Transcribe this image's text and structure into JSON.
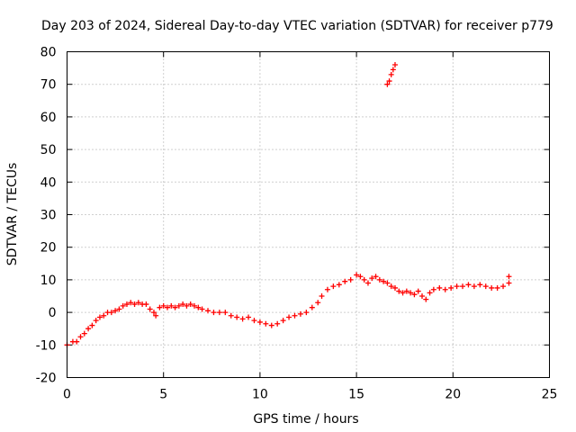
{
  "chart_data": {
    "type": "scatter",
    "title": "Day 203 of 2024, Sidereal Day-to-day VTEC variation (SDTVAR) for receiver p779",
    "xlabel": "GPS time / hours",
    "ylabel": "SDTVAR / TECUs",
    "xlim": [
      0,
      25
    ],
    "ylim": [
      -20,
      80
    ],
    "xticks": [
      0,
      5,
      10,
      15,
      20,
      25
    ],
    "yticks": [
      -20,
      -10,
      0,
      10,
      20,
      30,
      40,
      50,
      60,
      70,
      80
    ],
    "grid": true,
    "marker": "plus",
    "color": "#ff0000",
    "series": [
      {
        "name": "SDTVAR",
        "points": [
          [
            0.0,
            -10.0
          ],
          [
            0.3,
            -9.0
          ],
          [
            0.5,
            -9.0
          ],
          [
            0.7,
            -7.5
          ],
          [
            0.9,
            -6.5
          ],
          [
            1.1,
            -5.0
          ],
          [
            1.3,
            -4.0
          ],
          [
            1.5,
            -2.5
          ],
          [
            1.7,
            -1.5
          ],
          [
            1.9,
            -1.0
          ],
          [
            2.1,
            0.0
          ],
          [
            2.3,
            0.0
          ],
          [
            2.5,
            0.5
          ],
          [
            2.7,
            1.0
          ],
          [
            2.9,
            2.0
          ],
          [
            3.1,
            2.5
          ],
          [
            3.3,
            3.0
          ],
          [
            3.5,
            2.5
          ],
          [
            3.7,
            3.0
          ],
          [
            3.9,
            2.5
          ],
          [
            4.1,
            2.5
          ],
          [
            4.3,
            1.0
          ],
          [
            4.5,
            0.0
          ],
          [
            4.6,
            -1.0
          ],
          [
            4.8,
            1.5
          ],
          [
            5.0,
            2.0
          ],
          [
            5.2,
            1.5
          ],
          [
            5.4,
            2.0
          ],
          [
            5.6,
            1.5
          ],
          [
            5.8,
            2.0
          ],
          [
            6.0,
            2.5
          ],
          [
            6.2,
            2.0
          ],
          [
            6.4,
            2.5
          ],
          [
            6.6,
            2.0
          ],
          [
            6.8,
            1.5
          ],
          [
            7.0,
            1.0
          ],
          [
            7.3,
            0.5
          ],
          [
            7.6,
            0.0
          ],
          [
            7.9,
            0.0
          ],
          [
            8.2,
            0.0
          ],
          [
            8.5,
            -1.0
          ],
          [
            8.8,
            -1.5
          ],
          [
            9.1,
            -2.0
          ],
          [
            9.4,
            -1.5
          ],
          [
            9.7,
            -2.5
          ],
          [
            10.0,
            -3.0
          ],
          [
            10.3,
            -3.5
          ],
          [
            10.6,
            -4.0
          ],
          [
            10.9,
            -3.5
          ],
          [
            11.2,
            -2.5
          ],
          [
            11.5,
            -1.5
          ],
          [
            11.8,
            -1.0
          ],
          [
            12.1,
            -0.5
          ],
          [
            12.4,
            0.0
          ],
          [
            12.7,
            1.5
          ],
          [
            13.0,
            3.0
          ],
          [
            13.2,
            5.0
          ],
          [
            13.5,
            7.0
          ],
          [
            13.8,
            8.0
          ],
          [
            14.1,
            8.5
          ],
          [
            14.4,
            9.5
          ],
          [
            14.7,
            10.0
          ],
          [
            15.0,
            11.5
          ],
          [
            15.2,
            11.0
          ],
          [
            15.4,
            10.0
          ],
          [
            15.6,
            9.0
          ],
          [
            15.8,
            10.5
          ],
          [
            16.0,
            11.0
          ],
          [
            16.2,
            10.0
          ],
          [
            16.4,
            9.5
          ],
          [
            16.6,
            9.0
          ],
          [
            16.8,
            8.0
          ],
          [
            17.0,
            7.5
          ],
          [
            17.2,
            6.5
          ],
          [
            17.4,
            6.0
          ],
          [
            17.6,
            6.5
          ],
          [
            17.8,
            6.0
          ],
          [
            18.0,
            5.5
          ],
          [
            18.2,
            6.5
          ],
          [
            18.4,
            5.0
          ],
          [
            18.6,
            4.0
          ],
          [
            18.8,
            6.0
          ],
          [
            19.0,
            7.0
          ],
          [
            19.3,
            7.5
          ],
          [
            19.6,
            7.0
          ],
          [
            19.9,
            7.5
          ],
          [
            20.2,
            8.0
          ],
          [
            20.5,
            8.0
          ],
          [
            20.8,
            8.5
          ],
          [
            21.1,
            8.0
          ],
          [
            21.4,
            8.5
          ],
          [
            21.7,
            8.0
          ],
          [
            22.0,
            7.5
          ],
          [
            22.3,
            7.5
          ],
          [
            22.6,
            8.0
          ],
          [
            22.9,
            9.0
          ],
          [
            22.9,
            11.0
          ],
          [
            16.6,
            70.0
          ],
          [
            16.7,
            71.0
          ],
          [
            16.8,
            73.0
          ],
          [
            16.9,
            74.5
          ],
          [
            17.0,
            76.0
          ]
        ]
      }
    ]
  }
}
